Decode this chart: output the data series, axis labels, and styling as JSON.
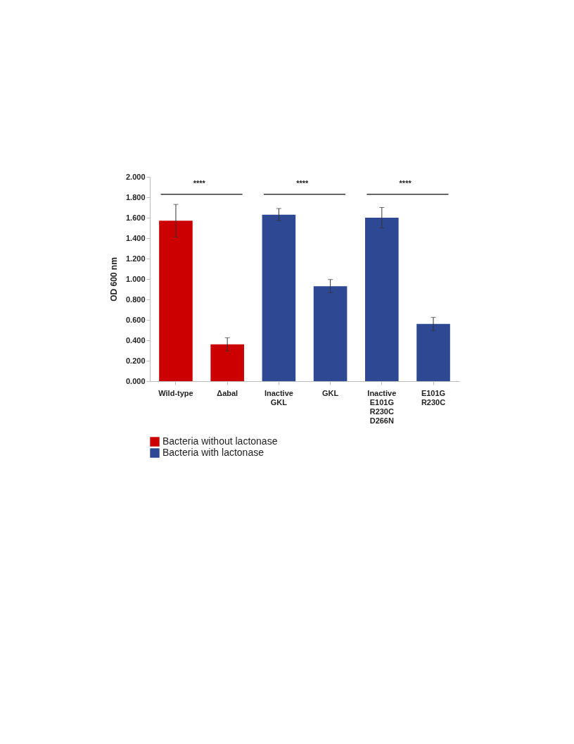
{
  "chart_data": {
    "type": "bar",
    "ylabel": "OD 600 nm",
    "categories": [
      "Wild-type",
      "Δabal",
      "Inactive GKL",
      "GKL",
      "Inactive E101G R230C D266N",
      "E101G R230C"
    ],
    "series": [
      {
        "name": "Bacteria without lactonase",
        "color": "#cc0000",
        "values": [
          1.57,
          0.36,
          null,
          null,
          null,
          null
        ],
        "errors": [
          0.16,
          0.065,
          null,
          null,
          null,
          null
        ]
      },
      {
        "name": "Bacteria with lactonase",
        "color": "#2e4894",
        "values": [
          null,
          null,
          1.63,
          0.93,
          1.6,
          0.56
        ],
        "errors": [
          null,
          null,
          0.06,
          0.065,
          0.1,
          0.065
        ]
      }
    ],
    "ylim": [
      0,
      2
    ],
    "yticks": [
      {
        "value": 0,
        "label": "0.000"
      },
      {
        "value": 0.2,
        "label": "0.200"
      },
      {
        "value": 0.4,
        "label": "0.400"
      },
      {
        "value": 0.6,
        "label": "0.600"
      },
      {
        "value": 0.8,
        "label": "0.800"
      },
      {
        "value": 1,
        "label": "1.000"
      },
      {
        "value": 1.2,
        "label": "1.200"
      },
      {
        "value": 1.4,
        "label": "1.400"
      },
      {
        "value": 1.6,
        "label": "1.600"
      },
      {
        "value": 1.8,
        "label": "1.800"
      },
      {
        "value": 2,
        "label": "2.000"
      }
    ],
    "annotations": [
      "****",
      "****",
      "****"
    ],
    "grid": false,
    "legend": "bottom left"
  }
}
